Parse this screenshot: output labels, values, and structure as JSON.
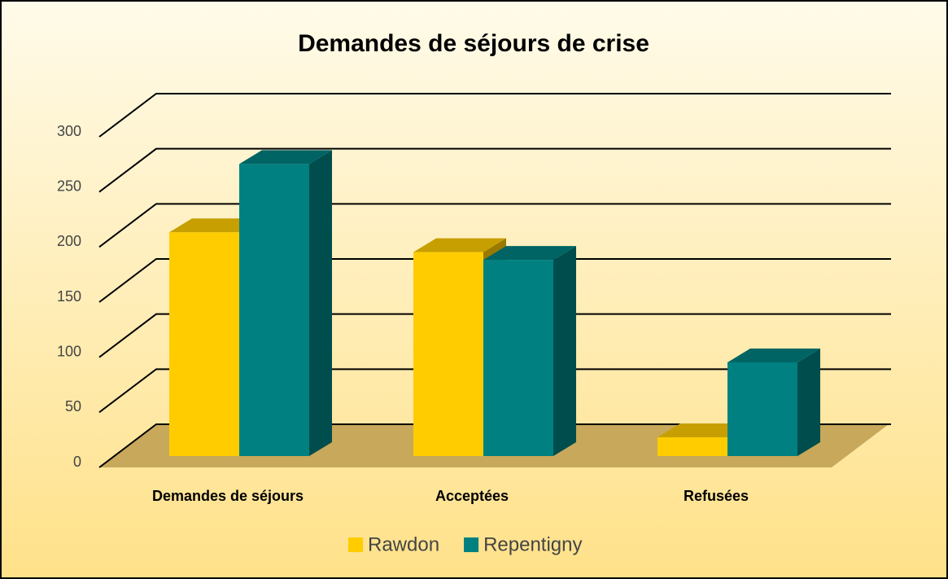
{
  "chart_data": {
    "type": "bar3d",
    "title": "Demandes de séjours de crise",
    "categories": [
      "Demandes de séjours",
      "Acceptées",
      "Refusées"
    ],
    "series": [
      {
        "name": "Rawdon",
        "color": "#ffcc00",
        "values": [
          203,
          185,
          17
        ]
      },
      {
        "name": "Repentigny",
        "color": "#008080",
        "values": [
          265,
          178,
          85
        ]
      }
    ],
    "ylim": [
      0,
      300
    ],
    "yticks": [
      0,
      50,
      100,
      150,
      200,
      250,
      300
    ],
    "grid": true,
    "legend": "bottom"
  }
}
